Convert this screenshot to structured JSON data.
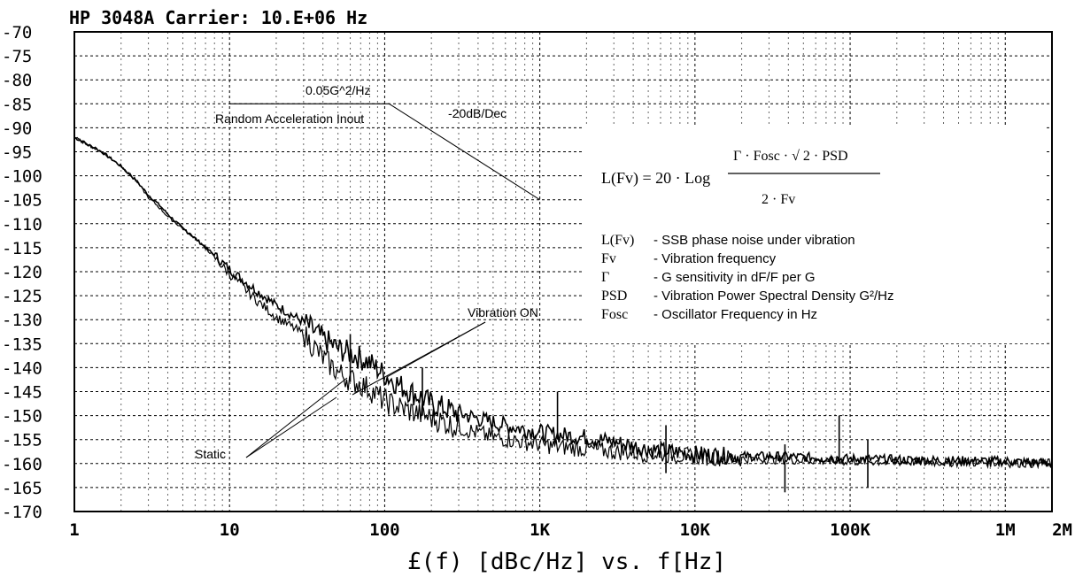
{
  "chart_data": {
    "type": "line",
    "title": "HP 3048A   Carrier: 10.E+06 Hz",
    "xlabel": "£(f) [dBc/Hz] vs. f[Hz]",
    "x_scale": "log",
    "xlim": [
      1,
      2000000
    ],
    "ylim": [
      -170,
      -70
    ],
    "grid": true,
    "x_ticks": [
      {
        "value": 1,
        "label": "1"
      },
      {
        "value": 10,
        "label": "10"
      },
      {
        "value": 100,
        "label": "100"
      },
      {
        "value": 1000,
        "label": "1K"
      },
      {
        "value": 10000,
        "label": "10K"
      },
      {
        "value": 100000,
        "label": "100K"
      },
      {
        "value": 1000000,
        "label": "1M"
      },
      {
        "value": 2000000,
        "label": "2M"
      }
    ],
    "y_ticks": [
      {
        "value": -70,
        "label": "-70"
      },
      {
        "value": -75,
        "label": "-75"
      },
      {
        "value": -80,
        "label": "-80"
      },
      {
        "value": -85,
        "label": "-85"
      },
      {
        "value": -90,
        "label": "-90"
      },
      {
        "value": -95,
        "label": "-95"
      },
      {
        "value": -100,
        "label": "-100"
      },
      {
        "value": -105,
        "label": "-105"
      },
      {
        "value": -110,
        "label": "-110"
      },
      {
        "value": -115,
        "label": "-115"
      },
      {
        "value": -120,
        "label": "-120"
      },
      {
        "value": -125,
        "label": "-125"
      },
      {
        "value": -130,
        "label": "-130"
      },
      {
        "value": -135,
        "label": "-135"
      },
      {
        "value": -140,
        "label": "-140"
      },
      {
        "value": -145,
        "label": "-145"
      },
      {
        "value": -150,
        "label": "-150"
      },
      {
        "value": -155,
        "label": "-155"
      },
      {
        "value": -160,
        "label": "-160"
      },
      {
        "value": -165,
        "label": "-165"
      },
      {
        "value": -170,
        "label": "-170"
      }
    ],
    "series": [
      {
        "name": "Vibration ON",
        "color": "#000000",
        "x": [
          1,
          1.5,
          2,
          2.5,
          3,
          3.5,
          4,
          5,
          6,
          7,
          8,
          10,
          15,
          20,
          30,
          40,
          50,
          60,
          70,
          80,
          100,
          130,
          200,
          300,
          500,
          1000,
          1300,
          2000,
          3000,
          5000,
          10000,
          20000,
          40000,
          80000,
          100000,
          200000,
          500000,
          1000000,
          2000000
        ],
        "y": [
          -92,
          -95,
          -98,
          -101,
          -104,
          -106,
          -108,
          -111,
          -113,
          -115,
          -116.5,
          -119.5,
          -124,
          -127,
          -130.5,
          -134,
          -136,
          -137,
          -138,
          -139,
          -141.5,
          -144,
          -147.5,
          -149.5,
          -151.5,
          -153.5,
          -154,
          -154.5,
          -155.5,
          -157,
          -158,
          -158.5,
          -158.5,
          -159,
          -159,
          -159.2,
          -159.4,
          -159.5,
          -160
        ]
      },
      {
        "name": "Static",
        "color": "#000000",
        "x": [
          1,
          1.5,
          2,
          2.5,
          3,
          3.5,
          4,
          5,
          6,
          7,
          8,
          10,
          15,
          20,
          30,
          40,
          50,
          60,
          70,
          80,
          100,
          130,
          200,
          300,
          500,
          1000,
          1300,
          2000,
          3000,
          5000,
          10000,
          20000,
          40000,
          80000,
          100000,
          200000,
          500000,
          1000000,
          2000000
        ],
        "y": [
          -92,
          -95,
          -98,
          -101,
          -104.5,
          -106.5,
          -108.5,
          -111,
          -113,
          -115,
          -117,
          -120.5,
          -126,
          -129.5,
          -133,
          -138,
          -141,
          -142.5,
          -143.5,
          -144.5,
          -147,
          -148.5,
          -150.5,
          -152.5,
          -154.5,
          -156,
          -156.5,
          -157,
          -157.5,
          -158,
          -158.5,
          -159,
          -159.2,
          -159.4,
          -159.5,
          -159.6,
          -159.7,
          -159.8,
          -160
        ]
      }
    ],
    "spurs": [
      {
        "x": 60,
        "y": -133
      },
      {
        "x": 175,
        "y": -140
      },
      {
        "x": 1300,
        "y": -145
      },
      {
        "x": 6500,
        "y": -152
      },
      {
        "x": 38000,
        "y": -156
      },
      {
        "x": 85000,
        "y": -150
      },
      {
        "x": 130000,
        "y": -155
      }
    ],
    "annotations": {
      "psd_label": "0.05G^2/Hz",
      "random_label": "Random Acceleration Inout",
      "slope_label": "-20dB/Dec",
      "vibration_label": "Vibration ON",
      "static_label": "Static",
      "psd_level_y": -85,
      "psd_start_x": 10,
      "psd_end_x": 100,
      "slope_end_x": 1000,
      "slope_end_y": -105
    },
    "formula": {
      "lhs": "L(Fv) = 20 · Log",
      "numerator": "Γ · Fosc · √ 2 · PSD",
      "denominator": "2 · Fv"
    },
    "definitions": [
      {
        "symbol": "L(Fv)",
        "text": "- SSB phase noise under vibration"
      },
      {
        "symbol": "Fv",
        "text": "- Vibration frequency"
      },
      {
        "symbol": "Γ",
        "text": "- G sensitivity in dF/F per G"
      },
      {
        "symbol": "PSD",
        "text": "- Vibration Power Spectral Density G²/Hz"
      },
      {
        "symbol": "Fosc",
        "text": "- Oscillator Frequency in Hz"
      }
    ]
  }
}
